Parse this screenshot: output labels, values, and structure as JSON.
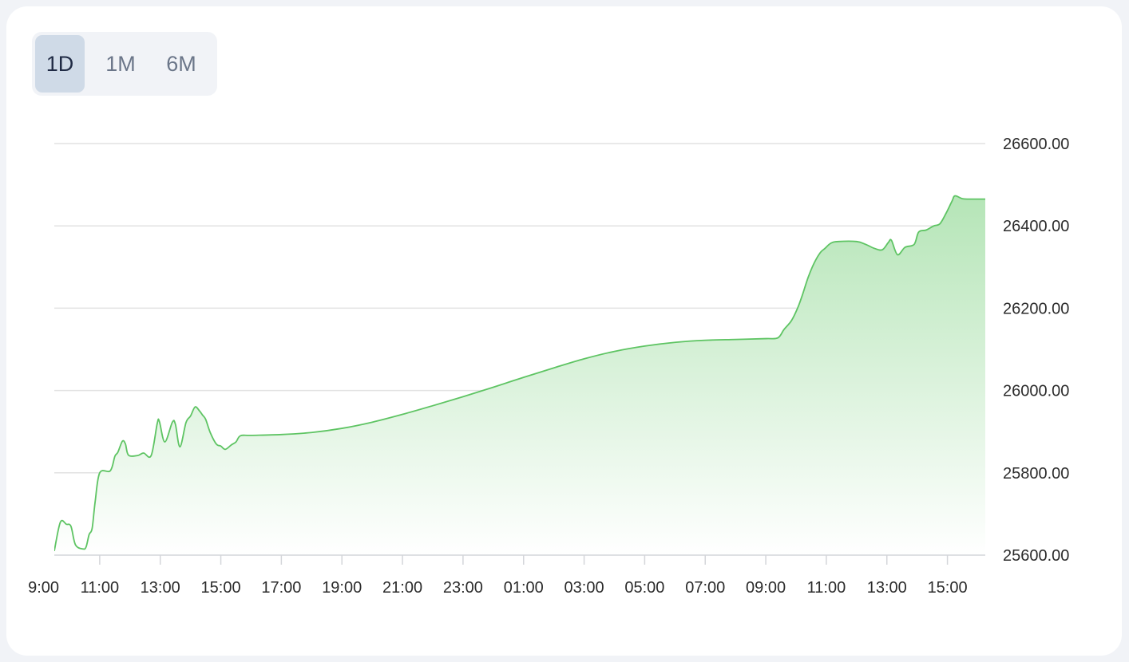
{
  "range_selector": {
    "options": [
      {
        "label": "1D",
        "active": true
      },
      {
        "label": "1M",
        "active": false
      },
      {
        "label": "6M",
        "active": false
      }
    ]
  },
  "colors": {
    "line": "#5ec463",
    "fill_top": "#b5e5b7",
    "fill_bottom": "#ffffff",
    "grid": "#e2e2e2",
    "axis": "#d4d6da"
  },
  "chart_data": {
    "type": "area",
    "title": "",
    "xlabel": "",
    "ylabel": "",
    "grid": true,
    "y_axis_position": "right",
    "ylim": [
      25600,
      26600
    ],
    "y_ticks": [
      "26600.00",
      "26400.00",
      "26200.00",
      "26000.00",
      "25800.00",
      "25600.00"
    ],
    "x_range_hours": [
      9.5,
      40.25
    ],
    "x_ticks": [
      {
        "h": 9,
        "label": "09:00"
      },
      {
        "h": 11,
        "label": "11:00"
      },
      {
        "h": 13,
        "label": "13:00"
      },
      {
        "h": 15,
        "label": "15:00"
      },
      {
        "h": 17,
        "label": "17:00"
      },
      {
        "h": 19,
        "label": "19:00"
      },
      {
        "h": 21,
        "label": "21:00"
      },
      {
        "h": 23,
        "label": "23:00"
      },
      {
        "h": 25,
        "label": "01:00"
      },
      {
        "h": 27,
        "label": "03:00"
      },
      {
        "h": 29,
        "label": "05:00"
      },
      {
        "h": 31,
        "label": "07:00"
      },
      {
        "h": 33,
        "label": "09:00"
      },
      {
        "h": 35,
        "label": "11:00"
      },
      {
        "h": 37,
        "label": "13:00"
      },
      {
        "h": 39,
        "label": "15:00"
      }
    ],
    "series": [
      {
        "values": [
          [
            9.5,
            25610
          ],
          [
            9.7,
            25680
          ],
          [
            9.9,
            25675
          ],
          [
            10.05,
            25670
          ],
          [
            10.2,
            25625
          ],
          [
            10.45,
            25615
          ],
          [
            10.55,
            25620
          ],
          [
            10.65,
            25650
          ],
          [
            10.75,
            25665
          ],
          [
            10.85,
            25730
          ],
          [
            11.0,
            25800
          ],
          [
            11.35,
            25805
          ],
          [
            11.5,
            25840
          ],
          [
            11.6,
            25850
          ],
          [
            11.75,
            25877
          ],
          [
            11.85,
            25870
          ],
          [
            11.95,
            25843
          ],
          [
            12.25,
            25842
          ],
          [
            12.45,
            25848
          ],
          [
            12.7,
            25842
          ],
          [
            12.9,
            25920
          ],
          [
            12.97,
            25925
          ],
          [
            13.15,
            25875
          ],
          [
            13.4,
            25923
          ],
          [
            13.5,
            25918
          ],
          [
            13.65,
            25863
          ],
          [
            13.85,
            25922
          ],
          [
            14.0,
            25938
          ],
          [
            14.15,
            25960
          ],
          [
            14.3,
            25950
          ],
          [
            14.4,
            25940
          ],
          [
            14.5,
            25930
          ],
          [
            14.65,
            25898
          ],
          [
            14.85,
            25870
          ],
          [
            15.0,
            25865
          ],
          [
            15.15,
            25857
          ],
          [
            15.35,
            25868
          ],
          [
            15.5,
            25875
          ],
          [
            15.65,
            25890
          ],
          [
            16.0,
            25891
          ],
          [
            17.0,
            25893
          ],
          [
            18.0,
            25898
          ],
          [
            19.0,
            25908
          ],
          [
            20.0,
            25923
          ],
          [
            21.0,
            25942
          ],
          [
            22.0,
            25963
          ],
          [
            23.0,
            25985
          ],
          [
            24.0,
            26008
          ],
          [
            25.0,
            26032
          ],
          [
            26.0,
            26055
          ],
          [
            27.0,
            26077
          ],
          [
            28.0,
            26095
          ],
          [
            29.0,
            26108
          ],
          [
            30.0,
            26117
          ],
          [
            31.0,
            26122
          ],
          [
            32.0,
            26124
          ],
          [
            33.0,
            26126
          ],
          [
            33.4,
            26128
          ],
          [
            33.6,
            26148
          ],
          [
            33.85,
            26170
          ],
          [
            34.05,
            26200
          ],
          [
            34.2,
            26230
          ],
          [
            34.4,
            26275
          ],
          [
            34.6,
            26310
          ],
          [
            34.8,
            26335
          ],
          [
            34.95,
            26345
          ],
          [
            35.15,
            26358
          ],
          [
            35.4,
            26362
          ],
          [
            36.0,
            26362
          ],
          [
            36.3,
            26355
          ],
          [
            36.6,
            26345
          ],
          [
            36.85,
            26342
          ],
          [
            37.05,
            26360
          ],
          [
            37.15,
            26365
          ],
          [
            37.35,
            26330
          ],
          [
            37.6,
            26348
          ],
          [
            37.9,
            26355
          ],
          [
            38.05,
            26385
          ],
          [
            38.3,
            26390
          ],
          [
            38.55,
            26400
          ],
          [
            38.75,
            26405
          ],
          [
            38.95,
            26430
          ],
          [
            39.15,
            26460
          ],
          [
            39.25,
            26473
          ],
          [
            39.5,
            26466
          ],
          [
            39.8,
            26465
          ]
        ]
      }
    ]
  }
}
